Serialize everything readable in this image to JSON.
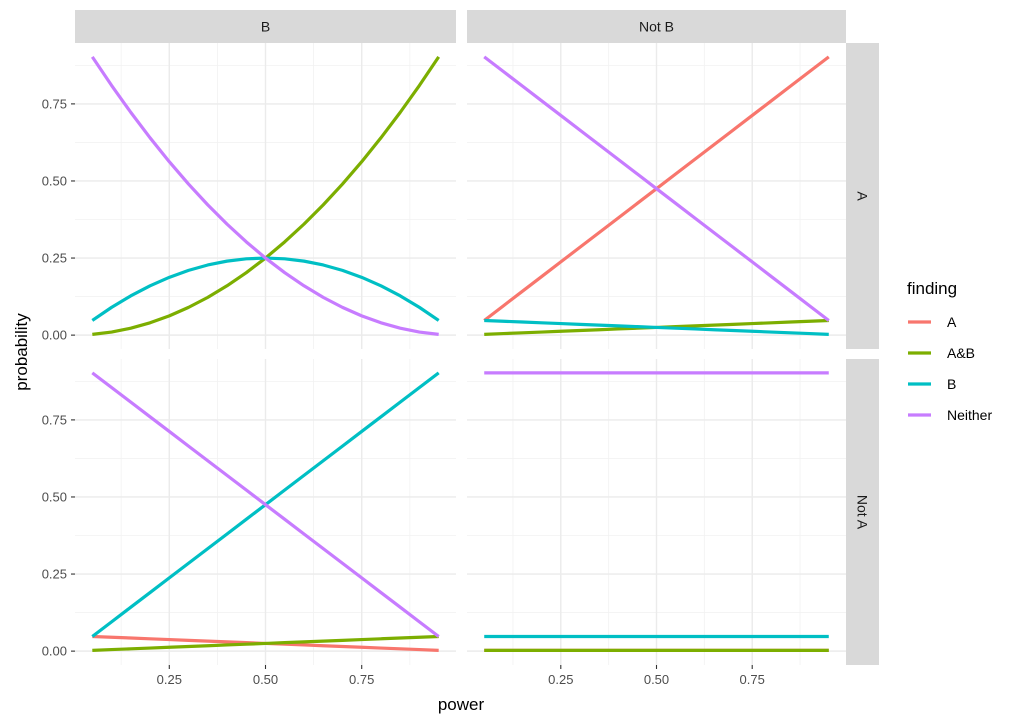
{
  "chart_data": {
    "type": "line",
    "facet_type": "grid",
    "xlabel": "power",
    "ylabel": "probability",
    "xlim": [
      0.05,
      0.95
    ],
    "ylim": [
      0,
      0.9
    ],
    "x_ticks": [
      0.25,
      0.5,
      0.75
    ],
    "x_tick_labels": [
      "0.25",
      "0.50",
      "0.75"
    ],
    "y_ticks": [
      0,
      0.25,
      0.5,
      0.75
    ],
    "y_tick_labels": [
      "0.00",
      "0.25",
      "0.50",
      "0.75"
    ],
    "x": [
      0.05,
      0.1,
      0.15,
      0.2,
      0.25,
      0.3,
      0.35,
      0.4,
      0.45,
      0.5,
      0.55,
      0.6,
      0.65,
      0.7,
      0.75,
      0.8,
      0.85,
      0.9,
      0.95
    ],
    "col_labels": [
      "B",
      "Not B"
    ],
    "row_labels": [
      "A",
      "Not A"
    ],
    "legend": {
      "title": "finding",
      "position": "right",
      "entries": [
        {
          "name": "A",
          "color": "#F8766D"
        },
        {
          "name": "A&B",
          "color": "#7CAE00"
        },
        {
          "name": "B",
          "color": "#00BFC4"
        },
        {
          "name": "Neither",
          "color": "#C77CFF"
        }
      ]
    },
    "grid": true,
    "panels": [
      {
        "row": "A",
        "col": "B",
        "series": [
          {
            "name": "A&B",
            "values": [
              0.0025,
              0.01,
              0.0225,
              0.04,
              0.0625,
              0.09,
              0.1225,
              0.16,
              0.2025,
              0.25,
              0.3025,
              0.36,
              0.4225,
              0.49,
              0.5625,
              0.64,
              0.7225,
              0.81,
              0.9025
            ]
          },
          {
            "name": "B",
            "values": [
              0.0475,
              0.09,
              0.1275,
              0.16,
              0.1875,
              0.21,
              0.2275,
              0.24,
              0.2475,
              0.25,
              0.2475,
              0.24,
              0.2275,
              0.21,
              0.1875,
              0.16,
              0.1275,
              0.09,
              0.0475
            ]
          },
          {
            "name": "Neither",
            "values": [
              0.9025,
              0.81,
              0.7225,
              0.64,
              0.5625,
              0.49,
              0.4225,
              0.36,
              0.3025,
              0.25,
              0.2025,
              0.16,
              0.1225,
              0.09,
              0.0625,
              0.04,
              0.0225,
              0.01,
              0.0025
            ]
          }
        ]
      },
      {
        "row": "A",
        "col": "Not B",
        "series": [
          {
            "name": "A",
            "values": [
              0.0475,
              0.095,
              0.1425,
              0.19,
              0.2375,
              0.285,
              0.3325,
              0.38,
              0.4275,
              0.475,
              0.5225,
              0.57,
              0.6175,
              0.665,
              0.7125,
              0.76,
              0.8075,
              0.855,
              0.9025
            ]
          },
          {
            "name": "A&B",
            "values": [
              0.0025,
              0.005,
              0.0075,
              0.01,
              0.0125,
              0.015,
              0.0175,
              0.02,
              0.0225,
              0.025,
              0.0275,
              0.03,
              0.0325,
              0.035,
              0.0375,
              0.04,
              0.0425,
              0.045,
              0.0475
            ]
          },
          {
            "name": "B",
            "values": [
              0.0475,
              0.045,
              0.0425,
              0.04,
              0.0375,
              0.035,
              0.0325,
              0.03,
              0.0275,
              0.025,
              0.0225,
              0.02,
              0.0175,
              0.015,
              0.0125,
              0.01,
              0.0075,
              0.005,
              0.0025
            ]
          },
          {
            "name": "Neither",
            "values": [
              0.9025,
              0.855,
              0.8075,
              0.76,
              0.7125,
              0.665,
              0.6175,
              0.57,
              0.5225,
              0.475,
              0.4275,
              0.38,
              0.3325,
              0.285,
              0.2375,
              0.19,
              0.1425,
              0.095,
              0.0475
            ]
          }
        ]
      },
      {
        "row": "Not A",
        "col": "B",
        "series": [
          {
            "name": "A",
            "values": [
              0.0475,
              0.045,
              0.0425,
              0.04,
              0.0375,
              0.035,
              0.0325,
              0.03,
              0.0275,
              0.025,
              0.0225,
              0.02,
              0.0175,
              0.015,
              0.0125,
              0.01,
              0.0075,
              0.005,
              0.0025
            ]
          },
          {
            "name": "A&B",
            "values": [
              0.0025,
              0.005,
              0.0075,
              0.01,
              0.0125,
              0.015,
              0.0175,
              0.02,
              0.0225,
              0.025,
              0.0275,
              0.03,
              0.0325,
              0.035,
              0.0375,
              0.04,
              0.0425,
              0.045,
              0.0475
            ]
          },
          {
            "name": "B",
            "values": [
              0.0475,
              0.095,
              0.1425,
              0.19,
              0.2375,
              0.285,
              0.3325,
              0.38,
              0.4275,
              0.475,
              0.5225,
              0.57,
              0.6175,
              0.665,
              0.7125,
              0.76,
              0.8075,
              0.855,
              0.9025
            ]
          },
          {
            "name": "Neither",
            "values": [
              0.9025,
              0.855,
              0.8075,
              0.76,
              0.7125,
              0.665,
              0.6175,
              0.57,
              0.5225,
              0.475,
              0.4275,
              0.38,
              0.3325,
              0.285,
              0.2375,
              0.19,
              0.1425,
              0.095,
              0.0475
            ]
          }
        ]
      },
      {
        "row": "Not A",
        "col": "Not B",
        "series": [
          {
            "name": "A",
            "values": [
              0.0025,
              0.0025,
              0.0025,
              0.0025,
              0.0025,
              0.0025,
              0.0025,
              0.0025,
              0.0025,
              0.0025,
              0.0025,
              0.0025,
              0.0025,
              0.0025,
              0.0025,
              0.0025,
              0.0025,
              0.0025,
              0.0025
            ]
          },
          {
            "name": "A&B",
            "values": [
              0.0025,
              0.0025,
              0.0025,
              0.0025,
              0.0025,
              0.0025,
              0.0025,
              0.0025,
              0.0025,
              0.0025,
              0.0025,
              0.0025,
              0.0025,
              0.0025,
              0.0025,
              0.0025,
              0.0025,
              0.0025,
              0.0025
            ]
          },
          {
            "name": "B",
            "values": [
              0.0475,
              0.0475,
              0.0475,
              0.0475,
              0.0475,
              0.0475,
              0.0475,
              0.0475,
              0.0475,
              0.0475,
              0.0475,
              0.0475,
              0.0475,
              0.0475,
              0.0475,
              0.0475,
              0.0475,
              0.0475,
              0.0475
            ]
          },
          {
            "name": "Neither",
            "values": [
              0.9025,
              0.9025,
              0.9025,
              0.9025,
              0.9025,
              0.9025,
              0.9025,
              0.9025,
              0.9025,
              0.9025,
              0.9025,
              0.9025,
              0.9025,
              0.9025,
              0.9025,
              0.9025,
              0.9025,
              0.9025,
              0.9025
            ]
          }
        ]
      }
    ]
  }
}
